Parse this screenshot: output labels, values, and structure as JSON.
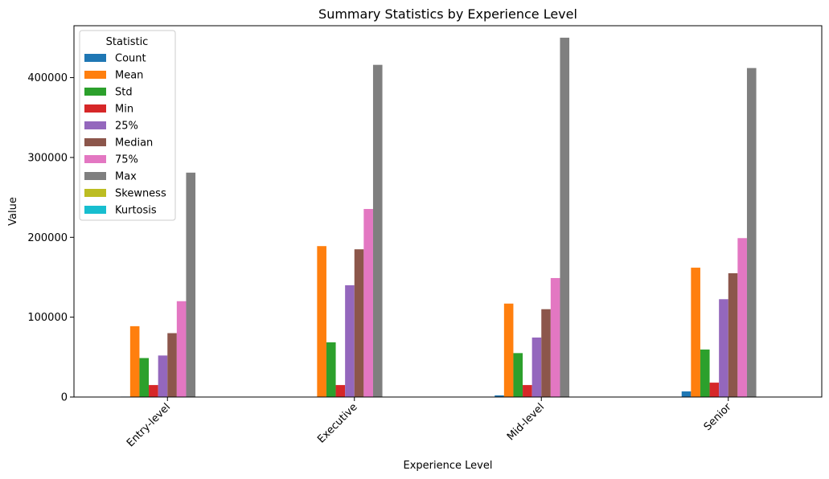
{
  "chart_data": {
    "type": "bar",
    "title": "Summary Statistics by Experience Level",
    "xlabel": "Experience Level",
    "ylabel": "Value",
    "categories": [
      "Entry-level",
      "Executive",
      "Mid-level",
      "Senior"
    ],
    "ylim": [
      0,
      465000
    ],
    "yticks": [
      0,
      100000,
      200000,
      300000,
      400000
    ],
    "ytick_labels": [
      "0",
      "100000",
      "200000",
      "300000",
      "400000"
    ],
    "xtick_rotation": 45,
    "grid": false,
    "legend": {
      "title": "Statistic",
      "placement": "top-left"
    },
    "series": [
      {
        "name": "Count",
        "color": "#1f77b4",
        "values": [
          565,
          114,
          2051,
          7022
        ]
      },
      {
        "name": "Mean",
        "color": "#ff7f0e",
        "values": [
          88700,
          189000,
          117000,
          162000
        ]
      },
      {
        "name": "Std",
        "color": "#2ca02c",
        "values": [
          48800,
          68500,
          55000,
          59500
        ]
      },
      {
        "name": "Min",
        "color": "#d62728",
        "values": [
          15000,
          15000,
          15000,
          18000
        ]
      },
      {
        "name": "25%",
        "color": "#9467bd",
        "values": [
          52000,
          140000,
          74500,
          122500
        ]
      },
      {
        "name": "Median",
        "color": "#8c564b",
        "values": [
          80000,
          185000,
          110000,
          155000
        ]
      },
      {
        "name": "75%",
        "color": "#e377c2",
        "values": [
          120000,
          235500,
          149000,
          199000
        ]
      },
      {
        "name": "Max",
        "color": "#7f7f7f",
        "values": [
          281000,
          416000,
          450000,
          412000
        ]
      },
      {
        "name": "Skewness",
        "color": "#bcbd22",
        "values": [
          1.2,
          0.5,
          1.1,
          0.7
        ]
      },
      {
        "name": "Kurtosis",
        "color": "#17becf",
        "values": [
          2.1,
          0.8,
          3.4,
          1.5
        ]
      }
    ]
  }
}
